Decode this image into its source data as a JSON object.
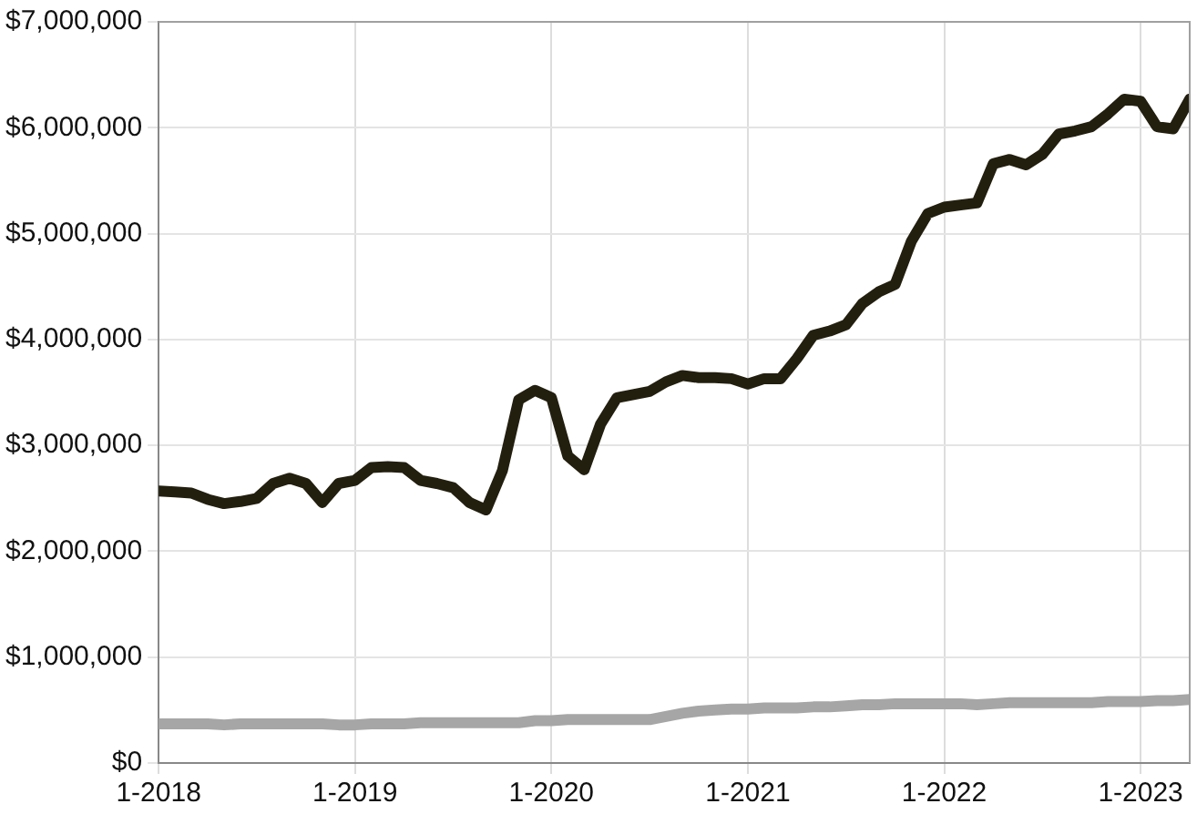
{
  "chart_data": {
    "type": "line",
    "x": [
      "2018-01",
      "2018-02",
      "2018-03",
      "2018-04",
      "2018-05",
      "2018-06",
      "2018-07",
      "2018-08",
      "2018-09",
      "2018-10",
      "2018-11",
      "2018-12",
      "2019-01",
      "2019-02",
      "2019-03",
      "2019-04",
      "2019-05",
      "2019-06",
      "2019-07",
      "2019-08",
      "2019-09",
      "2019-10",
      "2019-11",
      "2019-12",
      "2020-01",
      "2020-02",
      "2020-03",
      "2020-04",
      "2020-05",
      "2020-06",
      "2020-07",
      "2020-08",
      "2020-09",
      "2020-10",
      "2020-11",
      "2020-12",
      "2021-01",
      "2021-02",
      "2021-03",
      "2021-04",
      "2021-05",
      "2021-06",
      "2021-07",
      "2021-08",
      "2021-09",
      "2021-10",
      "2021-11",
      "2021-12",
      "2022-01",
      "2022-02",
      "2022-03",
      "2022-04",
      "2022-05",
      "2022-06",
      "2022-07",
      "2022-08",
      "2022-09",
      "2022-10",
      "2022-11",
      "2022-12",
      "2023-01",
      "2023-02",
      "2023-03",
      "2023-04"
    ],
    "series": [
      {
        "color": "#231f0f",
        "values": [
          2570000,
          2560000,
          2550000,
          2490000,
          2450000,
          2470000,
          2500000,
          2640000,
          2690000,
          2640000,
          2460000,
          2640000,
          2670000,
          2790000,
          2800000,
          2790000,
          2670000,
          2640000,
          2600000,
          2460000,
          2390000,
          2760000,
          3430000,
          3520000,
          3450000,
          2900000,
          2770000,
          3200000,
          3450000,
          3480000,
          3510000,
          3600000,
          3660000,
          3640000,
          3640000,
          3630000,
          3580000,
          3630000,
          3630000,
          3820000,
          4040000,
          4080000,
          4140000,
          4340000,
          4450000,
          4520000,
          4930000,
          5190000,
          5250000,
          5270000,
          5290000,
          5660000,
          5700000,
          5650000,
          5750000,
          5940000,
          5970000,
          6010000,
          6130000,
          6270000,
          6250000,
          6010000,
          5990000,
          6270000
        ]
      },
      {
        "color": "#a6a6a6",
        "values": [
          370000,
          370000,
          370000,
          370000,
          360000,
          370000,
          370000,
          370000,
          370000,
          370000,
          370000,
          360000,
          360000,
          370000,
          370000,
          370000,
          380000,
          380000,
          380000,
          380000,
          380000,
          380000,
          380000,
          400000,
          400000,
          410000,
          410000,
          410000,
          410000,
          410000,
          410000,
          440000,
          470000,
          490000,
          500000,
          510000,
          510000,
          520000,
          520000,
          520000,
          530000,
          530000,
          540000,
          550000,
          550000,
          560000,
          560000,
          560000,
          560000,
          560000,
          550000,
          560000,
          570000,
          570000,
          570000,
          570000,
          570000,
          570000,
          580000,
          580000,
          580000,
          590000,
          590000,
          600000
        ]
      }
    ],
    "xlim": [
      "2018-01",
      "2023-04"
    ],
    "xticks": [
      {
        "value": "2018-01",
        "label": "1-2018"
      },
      {
        "value": "2019-01",
        "label": "1-2019"
      },
      {
        "value": "2020-01",
        "label": "1-2020"
      },
      {
        "value": "2021-01",
        "label": "1-2021"
      },
      {
        "value": "2022-01",
        "label": "1-2022"
      },
      {
        "value": "2023-01",
        "label": "1-2023"
      }
    ],
    "ylim": [
      0,
      7000000
    ],
    "yticks": [
      {
        "value": 0,
        "label": "$0"
      },
      {
        "value": 1000000,
        "label": "$1,000,000"
      },
      {
        "value": 2000000,
        "label": "$2,000,000"
      },
      {
        "value": 3000000,
        "label": "$3,000,000"
      },
      {
        "value": 4000000,
        "label": "$4,000,000"
      },
      {
        "value": 5000000,
        "label": "$5,000,000"
      },
      {
        "value": 6000000,
        "label": "$6,000,000"
      },
      {
        "value": 7000000,
        "label": "$7,000,000"
      }
    ],
    "grid": true,
    "legend": false,
    "marker": "none",
    "line_style": "solid"
  }
}
